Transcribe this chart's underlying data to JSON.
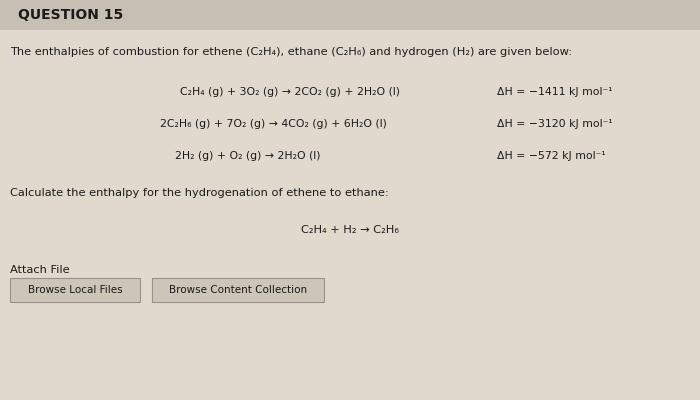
{
  "background_color": "#e2d9ce",
  "title": "QUESTION 15",
  "intro_text": "The enthalpies of combustion for ethene (C₂H₄), ethane (C₂H₆) and hydrogen (H₂) are given below:",
  "eq1_left": "C₂H₄ (g) + 3O₂ (g) → 2CO₂ (g) + 2H₂O (l)",
  "eq1_right": "ΔH = −1411 kJ mol⁻¹",
  "eq2_left": "2C₂H₆ (g) + 7O₂ (g) → 4CO₂ (g) + 6H₂O (l)",
  "eq2_right": "ΔH = −3120 kJ mol⁻¹",
  "eq3_left": "2H₂ (g) + O₂ (g) → 2H₂O (l)",
  "eq3_right": "ΔH = −572 kJ mol⁻¹",
  "calc_text": "Calculate the enthalpy for the hydrogenation of ethene to ethane:",
  "reaction": "C₂H₄ + H₂ → C₂H₆",
  "attach_label": "Attach File",
  "btn1": "Browse Local Files",
  "btn2": "Browse Content Collection",
  "header_color": "#c8bfb4",
  "btn_color": "#cdc5b8"
}
